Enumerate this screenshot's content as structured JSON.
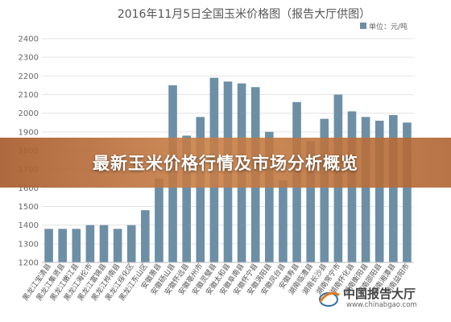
{
  "chart_data": {
    "type": "bar",
    "title": "2016年11月5日全国玉米价格图（报告大厅供图）",
    "legend": "单位：元/吨",
    "legend_position": "top-right",
    "ylim": [
      1200,
      2400
    ],
    "yticks": [
      1200,
      1300,
      1400,
      1500,
      1600,
      1700,
      1800,
      1900,
      2000,
      2100,
      2200,
      2300,
      2400
    ],
    "grid": true,
    "bar_color": "#6d8fa6",
    "categories": [
      "黑龙江宝清县",
      "黑龙江集贤县",
      "黑龙江嫩江县",
      "黑龙江海伦市",
      "黑龙江富锦县",
      "黑龙江桦南县",
      "黑龙江绥化区",
      "黑龙江东山区",
      "安徽萧县",
      "安徽砀山县",
      "安徽怀远县",
      "安徽亳州市",
      "安徽灵璧县",
      "安徽太和县",
      "安徽阜南县",
      "安徽怀宁县",
      "安徽涡阳县",
      "安徽凤台县",
      "安徽寿县",
      "湖南临澧县",
      "湖南长沙县",
      "湖南常宁市",
      "湖南怀化县",
      "湖南衡阳县",
      "湖南邵阳县",
      "湖南湘潭县",
      "湖南益阳市"
    ],
    "values": [
      1380,
      1380,
      1380,
      1400,
      1400,
      1380,
      1400,
      1480,
      1650,
      2150,
      1880,
      1980,
      2190,
      2170,
      2160,
      2140,
      1900,
      1640,
      2060,
      1850,
      1970,
      2100,
      2010,
      1980,
      1960,
      1990,
      1950
    ]
  },
  "banner": {
    "text": "最新玉米价格行情及市场分析概览"
  },
  "watermark": {
    "name": "中国报告大厅",
    "url": "www.chinabgao.com"
  }
}
